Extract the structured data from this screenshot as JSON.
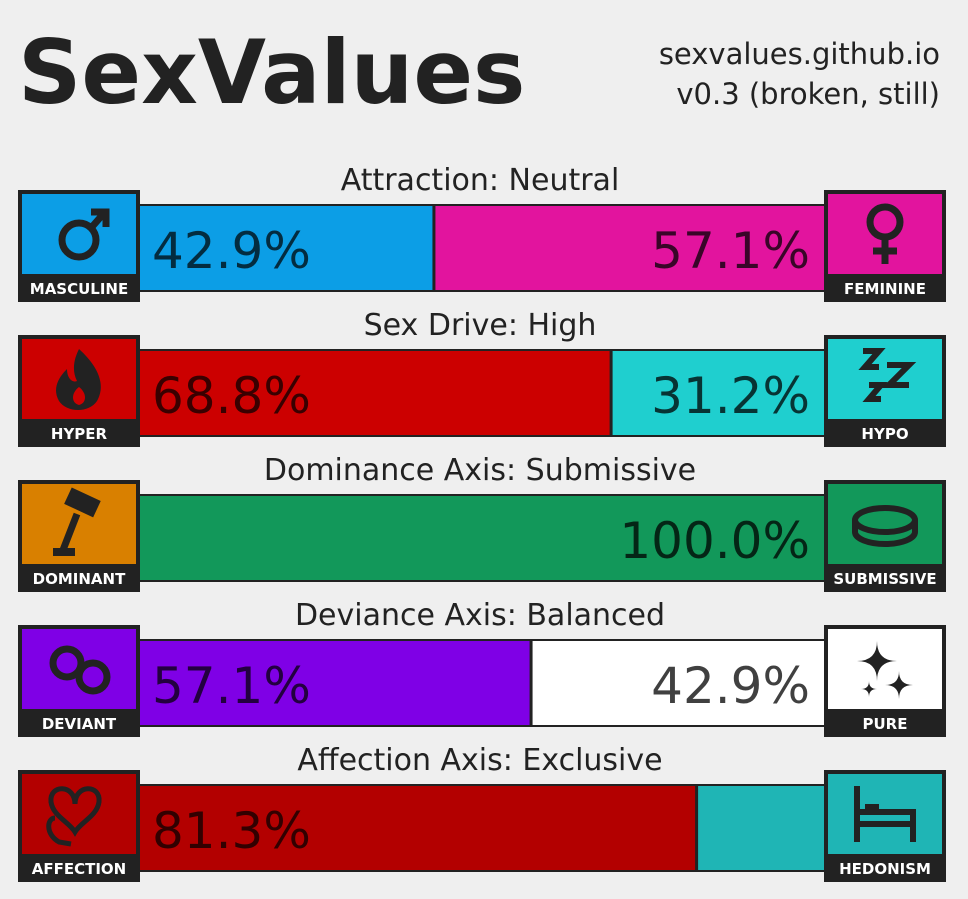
{
  "header": {
    "title": "SexValues",
    "site": "sexvalues.github.io",
    "version": "v0.3 (broken, still)"
  },
  "axes": [
    {
      "title": "Attraction: Neutral",
      "left": {
        "name": "MASCULINE",
        "value": 42.9,
        "label": "42.9%",
        "color": "#0c9ee6"
      },
      "right": {
        "name": "FEMININE",
        "value": 57.1,
        "label": "57.1%",
        "color": "#e2149e"
      }
    },
    {
      "title": "Sex Drive: High",
      "left": {
        "name": "HYPER",
        "value": 68.8,
        "label": "68.8%",
        "color": "#cc0000"
      },
      "right": {
        "name": "HYPO",
        "value": 31.2,
        "label": "31.2%",
        "color": "#1fcfcf"
      }
    },
    {
      "title": "Dominance Axis: Submissive",
      "left": {
        "name": "DOMINANT",
        "value": 0,
        "color": "#d98000"
      },
      "right": {
        "name": "SUBMISSIVE",
        "value": 100.0,
        "label": "100.0%",
        "color": "#12985a"
      }
    },
    {
      "title": "Deviance Axis: Balanced",
      "left": {
        "name": "DEVIANT",
        "value": 57.1,
        "label": "57.1%",
        "color": "#7f00e6"
      },
      "right": {
        "name": "PURE",
        "value": 42.9,
        "label": "42.9%",
        "color": "#ffffff"
      }
    },
    {
      "title": "Affection Axis: Exclusive",
      "left": {
        "name": "AFFECTION",
        "value": 81.3,
        "label": "81.3%",
        "color": "#b30000"
      },
      "right": {
        "name": "HEDONISM",
        "value": 18.7,
        "color": "#1fb5b5"
      }
    }
  ]
}
